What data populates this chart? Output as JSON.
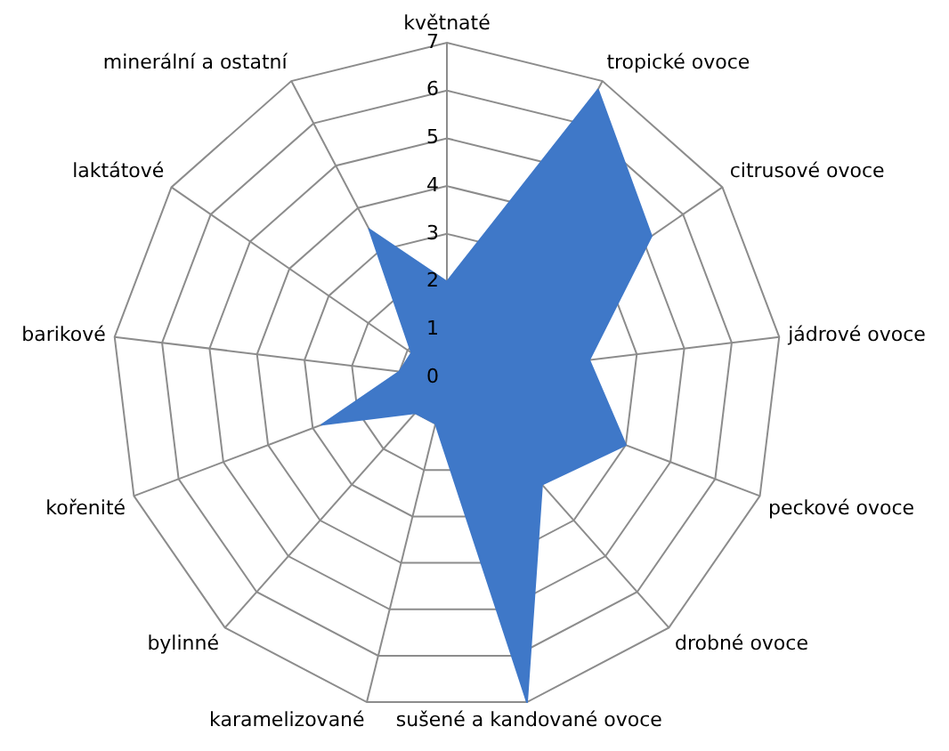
{
  "chart_data": {
    "type": "radar",
    "categories": [
      "květnaté",
      "tropické ovoce",
      "citrusové ovoce",
      "jádrové ovoce",
      "peckové ovoce",
      "drobné ovoce",
      "sušené a kandované ovoce",
      "karamelizované",
      "bylinné",
      "kořenité",
      "barikové",
      "laktátové",
      "minerální a ostatní"
    ],
    "series": [
      {
        "color": "#3f78c8",
        "values": [
          2,
          6.8,
          5.2,
          3,
          4,
          3,
          7,
          1,
          1,
          2.8,
          1,
          0.9,
          3.5
        ]
      }
    ],
    "ylim": [
      0,
      7
    ],
    "yticks": [
      0,
      1,
      2,
      3,
      4,
      5,
      6,
      7
    ],
    "grid": true,
    "legend": false,
    "marker": "none"
  }
}
